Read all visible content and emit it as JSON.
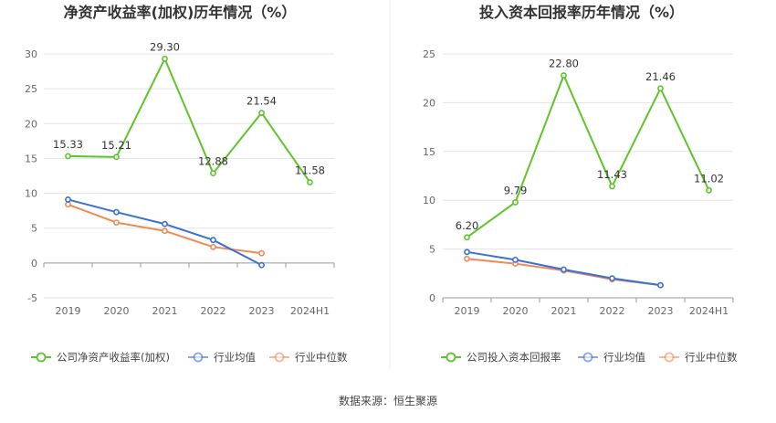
{
  "source_label": "数据来源：恒生聚源",
  "colors": {
    "company": "#5ec42b",
    "avg": "#3a6fd8",
    "median": "#f08a55",
    "grid": "#e3e3e3",
    "axis": "#999999"
  },
  "chart_data": [
    {
      "type": "line",
      "title": "净资产收益率(加权)历年情况（%）",
      "categories": [
        "2019",
        "2020",
        "2021",
        "2022",
        "2023",
        "2024H1"
      ],
      "ylim": [
        -5,
        30
      ],
      "yticks": [
        -5,
        0,
        5,
        10,
        15,
        20,
        25,
        30
      ],
      "grid": true,
      "legend_position": "bottom",
      "series": [
        {
          "name": "公司净资产收益率(加权)",
          "role": "company",
          "values": [
            15.33,
            15.21,
            29.3,
            12.88,
            21.54,
            11.58
          ],
          "labels": [
            "15.33",
            "15.21",
            "29.30",
            "12.88",
            "21.54",
            "11.58"
          ]
        },
        {
          "name": "行业均值",
          "role": "avg",
          "values": [
            9.1,
            7.3,
            5.6,
            3.3,
            -0.3,
            null
          ]
        },
        {
          "name": "行业中位数",
          "role": "median",
          "values": [
            8.4,
            5.8,
            4.6,
            2.3,
            1.4,
            null
          ]
        }
      ]
    },
    {
      "type": "line",
      "title": "投入资本回报率历年情况（%）",
      "categories": [
        "2019",
        "2020",
        "2021",
        "2022",
        "2023",
        "2024H1"
      ],
      "ylim": [
        0,
        25
      ],
      "yticks": [
        0,
        5,
        10,
        15,
        20,
        25
      ],
      "grid": true,
      "legend_position": "bottom",
      "series": [
        {
          "name": "公司投入资本回报率",
          "role": "company",
          "values": [
            6.2,
            9.79,
            22.8,
            11.43,
            21.46,
            11.02
          ],
          "labels": [
            "6.20",
            "9.79",
            "22.80",
            "11.43",
            "21.46",
            "11.02"
          ]
        },
        {
          "name": "行业均值",
          "role": "avg",
          "values": [
            4.7,
            3.9,
            2.9,
            2.0,
            1.3,
            null
          ]
        },
        {
          "name": "行业中位数",
          "role": "median",
          "values": [
            4.0,
            3.5,
            2.8,
            1.9,
            1.3,
            null
          ]
        }
      ]
    }
  ]
}
